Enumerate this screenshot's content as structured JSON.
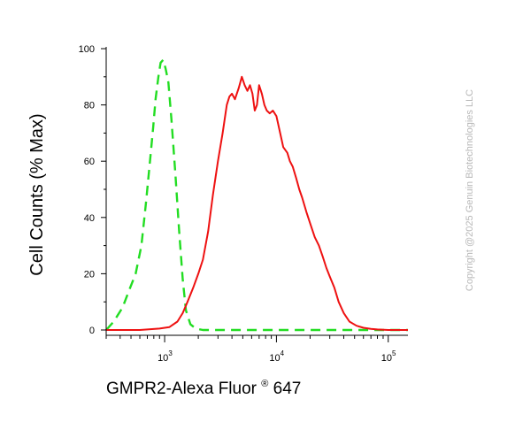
{
  "chart_data": {
    "type": "line",
    "xlabel": "GMPR2-Alexa Fluor",
    "xlabel_sup": "®",
    "xlabel_suffix": " 647",
    "ylabel": "Cell Counts (% Max)",
    "x_scale": "log",
    "xlim": [
      300,
      150000
    ],
    "ylim": [
      0,
      100
    ],
    "y_ticks": [
      "0",
      "20",
      "40",
      "60",
      "80",
      "100"
    ],
    "x_ticks": [
      {
        "value": 1000,
        "base": "10",
        "exp": "3"
      },
      {
        "value": 10000,
        "base": "10",
        "exp": "4"
      },
      {
        "value": 100000,
        "base": "10",
        "exp": "5"
      }
    ],
    "grid": false,
    "legend": "none",
    "series": [
      {
        "color": "#22dd22",
        "style": "dashed",
        "x": [
          300,
          350,
          420,
          480,
          550,
          620,
          680,
          740,
          790,
          830,
          880,
          920,
          970,
          1020,
          1080,
          1150,
          1250,
          1350,
          1450,
          1550,
          1700,
          1900,
          2200,
          3000,
          150000
        ],
        "y": [
          0,
          3,
          8,
          14,
          20,
          30,
          45,
          60,
          72,
          82,
          90,
          95,
          96,
          93,
          88,
          75,
          55,
          35,
          18,
          7,
          2,
          0.5,
          0,
          0,
          0
        ]
      },
      {
        "color": "#ee1111",
        "style": "solid",
        "x": [
          300,
          600,
          900,
          1100,
          1300,
          1450,
          1600,
          1800,
          2000,
          2200,
          2450,
          2700,
          3000,
          3300,
          3600,
          3800,
          4000,
          4250,
          4600,
          4900,
          5200,
          5500,
          5800,
          6100,
          6400,
          6700,
          7000,
          7400,
          7800,
          8200,
          8700,
          9300,
          10000,
          10800,
          11500,
          12500,
          13200,
          14000,
          15000,
          16000,
          17000,
          18500,
          20000,
          22000,
          24000,
          26000,
          28000,
          30000,
          33000,
          36000,
          40000,
          45000,
          52000,
          60000,
          70000,
          80000,
          100000,
          150000
        ],
        "y": [
          0,
          0,
          0.5,
          1,
          3,
          6,
          10,
          15,
          20,
          25,
          35,
          48,
          60,
          70,
          80,
          83,
          84,
          82,
          86,
          90,
          87,
          85,
          87,
          84,
          78,
          80,
          87,
          84,
          80,
          78,
          77,
          78,
          76,
          70,
          65,
          63,
          60,
          58,
          54,
          50,
          47,
          42,
          38,
          33,
          30,
          26,
          22,
          19,
          15,
          10,
          6,
          3,
          1.5,
          0.8,
          0.4,
          0.2,
          0,
          0
        ]
      }
    ]
  },
  "watermark": "Copyright @2025 Genuin Biotechnologies LLC"
}
